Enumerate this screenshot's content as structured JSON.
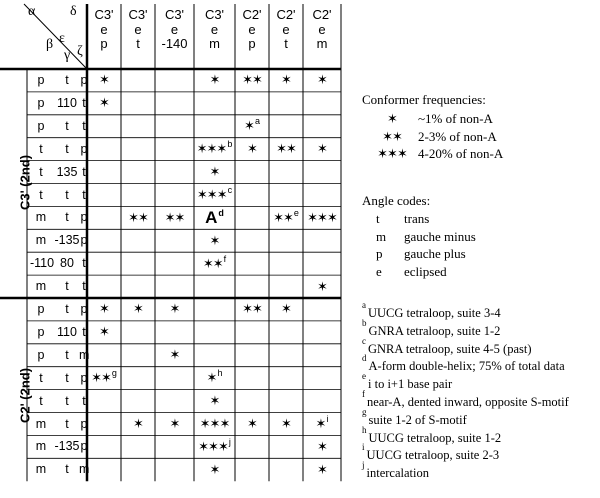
{
  "corner": {
    "alpha": "α",
    "delta": "δ",
    "beta": "β",
    "epsilon": "ε",
    "gamma": "γ",
    "zeta": "ζ"
  },
  "columns": [
    {
      "l1": "C3'",
      "l2": "e",
      "l3": "p"
    },
    {
      "l1": "C3'",
      "l2": "e",
      "l3": "t"
    },
    {
      "l1": "C3'",
      "l2": "e",
      "l3": "-140"
    },
    {
      "l1": "C3'",
      "l2": "e",
      "l3": "m"
    },
    {
      "l1": "C2'",
      "l2": "e",
      "l3": "p"
    },
    {
      "l1": "C2'",
      "l2": "e",
      "l3": "t"
    },
    {
      "l1": "C2'",
      "l2": "e",
      "l3": "m"
    }
  ],
  "groups": [
    {
      "label": "C3' (2nd)"
    },
    {
      "label": "C2' (2nd)"
    }
  ],
  "rows": [
    {
      "a": "p",
      "b": "t",
      "c": "p",
      "cells": [
        {
          "v": "✶"
        },
        {
          "v": ""
        },
        {
          "v": ""
        },
        {
          "v": "✶"
        },
        {
          "v": "✶✶"
        },
        {
          "v": "✶"
        },
        {
          "v": "✶"
        }
      ]
    },
    {
      "a": "p",
      "b": "110",
      "c": "t",
      "cells": [
        {
          "v": "✶"
        },
        {
          "v": ""
        },
        {
          "v": ""
        },
        {
          "v": ""
        },
        {
          "v": ""
        },
        {
          "v": ""
        },
        {
          "v": ""
        }
      ]
    },
    {
      "a": "p",
      "b": "t",
      "c": "t",
      "cells": [
        {
          "v": ""
        },
        {
          "v": ""
        },
        {
          "v": ""
        },
        {
          "v": ""
        },
        {
          "v": "✶",
          "s": "a"
        },
        {
          "v": ""
        },
        {
          "v": ""
        }
      ]
    },
    {
      "a": "t",
      "b": "t",
      "c": "p",
      "cells": [
        {
          "v": ""
        },
        {
          "v": ""
        },
        {
          "v": ""
        },
        {
          "v": "✶✶✶",
          "s": "b"
        },
        {
          "v": "✶"
        },
        {
          "v": "✶✶"
        },
        {
          "v": "✶"
        }
      ]
    },
    {
      "a": "t",
      "b": "135",
      "c": "t",
      "cells": [
        {
          "v": ""
        },
        {
          "v": ""
        },
        {
          "v": ""
        },
        {
          "v": "✶"
        },
        {
          "v": ""
        },
        {
          "v": ""
        },
        {
          "v": ""
        }
      ]
    },
    {
      "a": "t",
      "b": "t",
      "c": "t",
      "cells": [
        {
          "v": ""
        },
        {
          "v": ""
        },
        {
          "v": ""
        },
        {
          "v": "✶✶✶",
          "s": "c"
        },
        {
          "v": ""
        },
        {
          "v": ""
        },
        {
          "v": ""
        }
      ]
    },
    {
      "a": "m",
      "b": "t",
      "c": "p",
      "cells": [
        {
          "v": ""
        },
        {
          "v": "✶✶"
        },
        {
          "v": "✶✶"
        },
        {
          "v": "A",
          "s": "d",
          "big": true
        },
        {
          "v": ""
        },
        {
          "v": "✶✶",
          "s": "e"
        },
        {
          "v": "✶✶✶"
        }
      ]
    },
    {
      "a": "m",
      "b": "-135",
      "c": "p",
      "cells": [
        {
          "v": ""
        },
        {
          "v": ""
        },
        {
          "v": ""
        },
        {
          "v": "✶"
        },
        {
          "v": ""
        },
        {
          "v": ""
        },
        {
          "v": ""
        }
      ]
    },
    {
      "a": "-110",
      "b": "80",
      "c": "t",
      "cells": [
        {
          "v": ""
        },
        {
          "v": ""
        },
        {
          "v": ""
        },
        {
          "v": "✶✶",
          "s": "f"
        },
        {
          "v": ""
        },
        {
          "v": ""
        },
        {
          "v": ""
        }
      ]
    },
    {
      "a": "m",
      "b": "t",
      "c": "t",
      "cells": [
        {
          "v": ""
        },
        {
          "v": ""
        },
        {
          "v": ""
        },
        {
          "v": ""
        },
        {
          "v": ""
        },
        {
          "v": ""
        },
        {
          "v": "✶"
        }
      ]
    },
    {
      "a": "p",
      "b": "t",
      "c": "p",
      "cells": [
        {
          "v": "✶"
        },
        {
          "v": "✶"
        },
        {
          "v": "✶"
        },
        {
          "v": ""
        },
        {
          "v": "✶✶"
        },
        {
          "v": "✶"
        },
        {
          "v": ""
        }
      ]
    },
    {
      "a": "p",
      "b": "110",
      "c": "t",
      "cells": [
        {
          "v": "✶"
        },
        {
          "v": ""
        },
        {
          "v": ""
        },
        {
          "v": ""
        },
        {
          "v": ""
        },
        {
          "v": ""
        },
        {
          "v": ""
        }
      ]
    },
    {
      "a": "p",
      "b": "t",
      "c": "m",
      "cells": [
        {
          "v": ""
        },
        {
          "v": ""
        },
        {
          "v": "✶"
        },
        {
          "v": ""
        },
        {
          "v": ""
        },
        {
          "v": ""
        },
        {
          "v": ""
        }
      ]
    },
    {
      "a": "t",
      "b": "t",
      "c": "p",
      "cells": [
        {
          "v": "✶✶",
          "s": "g"
        },
        {
          "v": ""
        },
        {
          "v": ""
        },
        {
          "v": "✶",
          "s": "h"
        },
        {
          "v": ""
        },
        {
          "v": ""
        },
        {
          "v": ""
        }
      ]
    },
    {
      "a": "t",
      "b": "t",
      "c": "t",
      "cells": [
        {
          "v": ""
        },
        {
          "v": ""
        },
        {
          "v": ""
        },
        {
          "v": "✶"
        },
        {
          "v": ""
        },
        {
          "v": ""
        },
        {
          "v": ""
        }
      ]
    },
    {
      "a": "m",
      "b": "t",
      "c": "p",
      "cells": [
        {
          "v": ""
        },
        {
          "v": "✶"
        },
        {
          "v": "✶"
        },
        {
          "v": "✶✶✶"
        },
        {
          "v": "✶"
        },
        {
          "v": "✶"
        },
        {
          "v": "✶",
          "s": "i"
        }
      ]
    },
    {
      "a": "m",
      "b": "-135",
      "c": "p",
      "cells": [
        {
          "v": ""
        },
        {
          "v": ""
        },
        {
          "v": ""
        },
        {
          "v": "✶✶✶",
          "s": "j"
        },
        {
          "v": ""
        },
        {
          "v": ""
        },
        {
          "v": "✶"
        }
      ]
    },
    {
      "a": "m",
      "b": "t",
      "c": "m",
      "cells": [
        {
          "v": ""
        },
        {
          "v": ""
        },
        {
          "v": ""
        },
        {
          "v": "✶"
        },
        {
          "v": ""
        },
        {
          "v": ""
        },
        {
          "v": "✶"
        }
      ]
    }
  ],
  "legend": {
    "freq_title": "Conformer frequencies:",
    "freq": [
      {
        "sym": "✶",
        "text": "~1% of non-A"
      },
      {
        "sym": "✶✶",
        "text": "2-3% of non-A"
      },
      {
        "sym": "✶✶✶",
        "text": "4-20% of non-A"
      }
    ],
    "codes_title": "Angle codes:",
    "codes": [
      {
        "code": "t",
        "text": "trans"
      },
      {
        "code": "m",
        "text": "gauche minus"
      },
      {
        "code": "p",
        "text": "gauche plus"
      },
      {
        "code": "e",
        "text": "eclipsed"
      }
    ]
  },
  "footnotes": [
    {
      "k": "a",
      "t": "UUCG tetraloop, suite 3-4"
    },
    {
      "k": "b",
      "t": "GNRA tetraloop, suite 1-2"
    },
    {
      "k": "c",
      "t": "GNRA tetraloop, suite 4-5 (past)"
    },
    {
      "k": "d",
      "t": "A-form double-helix; 75% of total data"
    },
    {
      "k": "e",
      "t": "i to i+1 base pair"
    },
    {
      "k": "f",
      "t": "near-A, dented inward, opposite S-motif"
    },
    {
      "k": "g",
      "t": "suite 1-2 of S-motif"
    },
    {
      "k": "h",
      "t": "UUCG tetraloop, suite 1-2"
    },
    {
      "k": "i",
      "t": "UUCG tetraloop, suite 2-3"
    },
    {
      "k": "j",
      "t": "intercalation"
    }
  ]
}
